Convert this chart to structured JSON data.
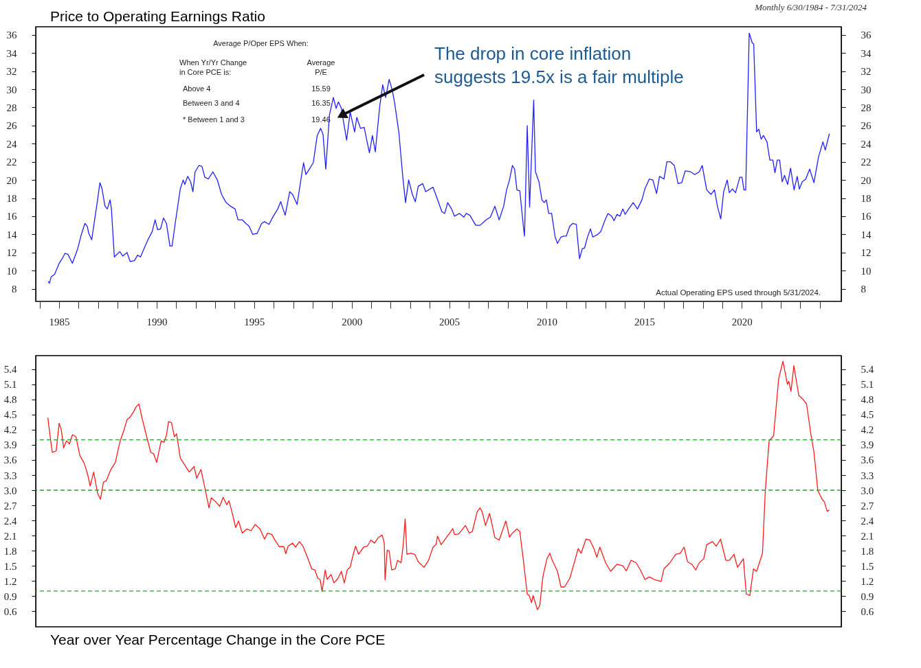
{
  "chart_data": [
    {
      "type": "line",
      "title": "Price to Operating Earnings Ratio",
      "subtitle": "Monthly 6/30/1984 - 7/31/2024",
      "annotations": [
        {
          "text": "The drop in core inflation suggests 19.5x is a fair multiple",
          "x": 1999.55,
          "y": 27.2
        },
        "Actual Operating EPS used through 5/31/2024.",
        "Average P/Oper EPS When:",
        "When Yr/Yr Change\nin Core PCE is:",
        "Average\nP/E",
        "Above 4",
        "15.59",
        "Between 3 and 4",
        "16.35",
        "* Between 1 and 3",
        "19.46"
      ],
      "xlim": [
        1983.8,
        2025.1
      ],
      "xticks": [
        {
          "value": 1984,
          "label": null
        },
        1985,
        {
          "value": 1986,
          "label": null
        },
        {
          "value": 1987,
          "label": null
        },
        {
          "value": 1988,
          "label": null
        },
        {
          "value": 1989,
          "label": null
        },
        1990,
        {
          "value": 1991,
          "label": null
        },
        {
          "value": 1992,
          "label": null
        },
        {
          "value": 1993,
          "label": null
        },
        {
          "value": 1994,
          "label": null
        },
        1995,
        {
          "value": 1996,
          "label": null
        },
        {
          "value": 1997,
          "label": null
        },
        {
          "value": 1998,
          "label": null
        },
        {
          "value": 1999,
          "label": null
        },
        2000,
        {
          "value": 2001,
          "label": null
        },
        {
          "value": 2002,
          "label": null
        },
        {
          "value": 2003,
          "label": null
        },
        {
          "value": 2004,
          "label": null
        },
        2005,
        {
          "value": 2006,
          "label": null
        },
        {
          "value": 2007,
          "label": null
        },
        {
          "value": 2008,
          "label": null
        },
        {
          "value": 2009,
          "label": null
        },
        2010,
        {
          "value": 2011,
          "label": null
        },
        {
          "value": 2012,
          "label": null
        },
        {
          "value": 2013,
          "label": null
        },
        {
          "value": 2014,
          "label": null
        },
        2015,
        {
          "value": 2016,
          "label": null
        },
        {
          "value": 2017,
          "label": null
        },
        {
          "value": 2018,
          "label": null
        },
        {
          "value": 2019,
          "label": null
        },
        2020,
        {
          "value": 2021,
          "label": null
        },
        {
          "value": 2022,
          "label": null
        },
        {
          "value": 2023,
          "label": null
        },
        {
          "value": 2024,
          "label": null
        }
      ],
      "ylim": [
        6.6,
        36.9
      ],
      "yticks": [
        8,
        10,
        12,
        14,
        16,
        18,
        20,
        22,
        24,
        26,
        28,
        30,
        32,
        34,
        36
      ],
      "y2lim": [
        6.6,
        36.9
      ],
      "y2ticks": [
        8,
        10,
        12,
        14,
        16,
        18,
        20,
        22,
        24,
        26,
        28,
        30,
        32,
        34,
        36
      ],
      "grid": false,
      "series": [
        {
          "color": "#1f1fff",
          "x": [
            1984.44,
            1984.5,
            1984.59,
            1984.77,
            1985.0,
            1985.15,
            1985.3,
            1985.45,
            1985.68,
            1985.95,
            1986.14,
            1986.32,
            1986.44,
            1986.52,
            1986.67,
            1986.82,
            1986.97,
            1987.09,
            1987.2,
            1987.35,
            1987.47,
            1987.61,
            1987.68,
            1987.83,
            1988.11,
            1988.26,
            1988.48,
            1988.64,
            1988.86,
            1989.02,
            1989.17,
            1989.39,
            1989.55,
            1989.77,
            1989.92,
            1990.05,
            1990.2,
            1990.35,
            1990.5,
            1990.68,
            1990.79,
            1990.95,
            1991.21,
            1991.36,
            1991.44,
            1991.59,
            1991.74,
            1991.86,
            1991.97,
            1992.17,
            1992.32,
            1992.47,
            1992.65,
            1992.88,
            1993.11,
            1993.33,
            1993.56,
            1993.79,
            1994.02,
            1994.17,
            1994.39,
            1994.62,
            1994.74,
            1994.92,
            1995.15,
            1995.38,
            1995.53,
            1995.76,
            1995.98,
            1996.21,
            1996.36,
            1996.59,
            1996.82,
            1996.97,
            1997.2,
            1997.53,
            1997.65,
            1997.8,
            1998.03,
            1998.23,
            1998.41,
            1998.53,
            1998.67,
            1998.86,
            1999.06,
            1999.2,
            1999.32,
            1999.47,
            1999.59,
            1999.74,
            1999.92,
            2000.15,
            2000.26,
            2000.45,
            2000.64,
            2000.76,
            2000.91,
            2001.06,
            2001.21,
            2001.44,
            2001.59,
            2001.74,
            2001.92,
            2002.08,
            2002.2,
            2002.42,
            2002.62,
            2002.76,
            2002.92,
            2003.11,
            2003.26,
            2003.41,
            2003.64,
            2003.79,
            2004.17,
            2004.39,
            2004.62,
            2004.77,
            2004.92,
            2005.12,
            2005.27,
            2005.53,
            2005.75,
            2005.87,
            2006.06,
            2006.36,
            2006.58,
            2006.89,
            2007.11,
            2007.34,
            2007.56,
            2007.79,
            2007.94,
            2008.09,
            2008.24,
            2008.35,
            2008.47,
            2008.62,
            2008.8,
            2008.86,
            2009.0,
            2009.12,
            2009.33,
            2009.42,
            2009.6,
            2009.75,
            2009.87,
            2009.98,
            2010.1,
            2010.25,
            2010.43,
            2010.55,
            2010.73,
            2010.88,
            2011.0,
            2011.18,
            2011.33,
            2011.52,
            2011.56,
            2011.68,
            2011.82,
            2011.94,
            2012.09,
            2012.24,
            2012.36,
            2012.62,
            2012.77,
            2012.99,
            2013.14,
            2013.33,
            2013.45,
            2013.6,
            2013.75,
            2013.9,
            2014.02,
            2014.2,
            2014.43,
            2014.65,
            2014.88,
            2015.03,
            2015.26,
            2015.44,
            2015.63,
            2015.78,
            2016.01,
            2016.16,
            2016.34,
            2016.54,
            2016.73,
            2016.92,
            2017.1,
            2017.37,
            2017.59,
            2017.82,
            2017.97,
            2018.2,
            2018.42,
            2018.6,
            2018.76,
            2018.92,
            2019.07,
            2019.25,
            2019.36,
            2019.51,
            2019.68,
            2019.9,
            2020.01,
            2020.11,
            2020.2,
            2020.38,
            2020.54,
            2020.61,
            2020.76,
            2020.87,
            2020.99,
            2021.11,
            2021.29,
            2021.44,
            2021.59,
            2021.7,
            2021.82,
            2021.94,
            2022.07,
            2022.19,
            2022.35,
            2022.5,
            2022.68,
            2022.84,
            2022.95,
            2023.1,
            2023.28,
            2023.48,
            2023.7,
            2023.93,
            2024.16,
            2024.28,
            2024.49
          ],
          "values": [
            8.8,
            8.6,
            9.3,
            9.6,
            10.8,
            11.3,
            11.9,
            11.8,
            10.8,
            12.4,
            14.0,
            15.2,
            14.9,
            14.1,
            13.4,
            15.6,
            17.8,
            19.7,
            19.0,
            17.1,
            16.8,
            17.8,
            16.8,
            11.5,
            12.1,
            11.6,
            12.0,
            11.0,
            11.1,
            11.7,
            11.5,
            12.6,
            13.4,
            14.3,
            15.6,
            14.5,
            14.6,
            15.8,
            15.2,
            12.7,
            12.7,
            15.2,
            19.0,
            20.0,
            19.5,
            20.4,
            19.8,
            18.7,
            20.9,
            21.6,
            21.5,
            20.3,
            20.1,
            20.9,
            20.0,
            18.4,
            17.5,
            17.1,
            16.8,
            15.6,
            15.6,
            15.1,
            14.9,
            14.0,
            14.1,
            15.2,
            15.4,
            15.1,
            16.0,
            16.8,
            17.6,
            16.1,
            18.7,
            18.4,
            17.3,
            21.9,
            20.6,
            21.1,
            21.9,
            24.9,
            25.7,
            25.0,
            21.2,
            27.2,
            29.1,
            27.9,
            28.6,
            27.9,
            26.3,
            24.4,
            27.5,
            25.3,
            26.9,
            25.7,
            25.8,
            24.5,
            23.0,
            24.9,
            23.1,
            28.2,
            30.5,
            29.1,
            31.1,
            29.9,
            28.5,
            25.2,
            20.3,
            17.5,
            20.0,
            18.4,
            17.6,
            19.3,
            19.6,
            18.7,
            19.2,
            17.9,
            16.5,
            16.3,
            17.5,
            16.8,
            16.0,
            16.3,
            15.9,
            16.3,
            16.1,
            15.0,
            15.0,
            15.6,
            15.9,
            17.1,
            15.6,
            17.1,
            18.9,
            20.0,
            21.6,
            21.2,
            18.9,
            18.8,
            14.9,
            13.8,
            26.0,
            17.0,
            28.8,
            20.9,
            19.8,
            17.8,
            17.5,
            17.8,
            16.3,
            16.3,
            13.7,
            13.0,
            13.7,
            13.8,
            13.8,
            14.9,
            15.2,
            15.1,
            14.0,
            11.3,
            12.4,
            12.5,
            13.7,
            14.6,
            13.7,
            14.0,
            14.3,
            15.6,
            16.3,
            16.0,
            15.5,
            16.2,
            16.0,
            16.8,
            16.2,
            16.8,
            17.5,
            16.8,
            17.8,
            19.0,
            20.1,
            20.0,
            18.5,
            20.4,
            20.1,
            22.0,
            22.0,
            21.6,
            19.6,
            19.7,
            21.0,
            20.9,
            20.6,
            20.9,
            21.6,
            18.9,
            18.4,
            18.9,
            17.0,
            15.7,
            18.7,
            20.0,
            18.6,
            19.0,
            18.6,
            20.3,
            20.3,
            18.9,
            18.9,
            36.2,
            35.1,
            35.0,
            25.3,
            25.6,
            24.5,
            24.9,
            24.2,
            22.2,
            22.2,
            20.8,
            22.2,
            22.2,
            19.8,
            20.5,
            19.5,
            21.3,
            18.9,
            20.4,
            19.0,
            19.8,
            20.1,
            21.2,
            19.7,
            22.5,
            24.2,
            23.3,
            25.1
          ]
        }
      ]
    },
    {
      "type": "line",
      "title": "Year over Year Percentage Change in the Core PCE",
      "xlim": [
        1983.8,
        2025.1
      ],
      "ylim": [
        0.29,
        5.67
      ],
      "yticks": [
        0.6,
        0.9,
        1.2,
        1.5,
        1.8,
        2.1,
        2.4,
        2.7,
        {
          "value": 3,
          "label": "3.0"
        },
        3.3,
        3.6,
        3.9,
        4.2,
        4.5,
        4.8,
        5.1,
        5.4
      ],
      "y2lim": [
        0.29,
        5.67
      ],
      "y2ticks": [
        0.6,
        0.9,
        1.2,
        1.5,
        1.8,
        2.1,
        2.4,
        2.7,
        {
          "value": 3,
          "label": "3.0"
        },
        3.3,
        3.6,
        3.9,
        4.2,
        4.5,
        4.8,
        5.1,
        5.4
      ],
      "tick_labels": "y",
      "grid": false,
      "ref_lines": [
        {
          "axis": "y",
          "value": 4,
          "color": "#2ca02c",
          "line_style": "dashed"
        },
        {
          "axis": "y",
          "value": 3,
          "color": "#2ca02c",
          "line_style": "dashed"
        },
        {
          "axis": "y",
          "value": 1,
          "color": "#2ca02c",
          "line_style": "dashed"
        }
      ],
      "series": [
        {
          "color": "#ff1a1a",
          "x": [
            1984.42,
            1984.55,
            1984.65,
            1984.85,
            1985.0,
            1985.11,
            1985.23,
            1985.38,
            1985.53,
            1985.68,
            1985.86,
            1986.06,
            1986.29,
            1986.47,
            1986.59,
            1986.77,
            1986.97,
            1987.12,
            1987.27,
            1987.42,
            1987.65,
            1987.88,
            1988.11,
            1988.33,
            1988.48,
            1988.64,
            1988.79,
            1988.94,
            1989.09,
            1989.24,
            1989.47,
            1989.7,
            1989.85,
            1990.0,
            1990.23,
            1990.38,
            1990.5,
            1990.61,
            1990.76,
            1990.91,
            1991.02,
            1991.21,
            1991.44,
            1991.67,
            1991.92,
            1992.05,
            1992.27,
            1992.47,
            1992.68,
            1992.8,
            1993.03,
            1993.23,
            1993.41,
            1993.59,
            1993.71,
            1993.86,
            1994.05,
            1994.2,
            1994.39,
            1994.62,
            1994.85,
            1995.05,
            1995.3,
            1995.53,
            1995.68,
            1995.91,
            1996.06,
            1996.29,
            1996.52,
            1996.62,
            1996.74,
            1996.97,
            1997.12,
            1997.32,
            1997.5,
            1997.73,
            1997.95,
            1998.11,
            1998.26,
            1998.38,
            1998.48,
            1998.64,
            1998.74,
            1998.94,
            1999.09,
            1999.29,
            1999.47,
            1999.62,
            1999.77,
            1999.92,
            2000.08,
            2000.2,
            2000.35,
            2000.61,
            2000.8,
            2000.98,
            2001.17,
            2001.36,
            2001.56,
            2001.67,
            2001.71,
            2001.82,
            2001.92,
            2002.05,
            2002.23,
            2002.35,
            2002.53,
            2002.65,
            2002.74,
            2002.83,
            2003.03,
            2003.23,
            2003.41,
            2003.71,
            2003.94,
            2004.17,
            2004.32,
            2004.4,
            2004.58,
            2004.85,
            2005.08,
            2005.18,
            2005.27,
            2005.48,
            2005.83,
            2006.03,
            2006.18,
            2006.43,
            2006.58,
            2006.69,
            2006.86,
            2007.07,
            2007.34,
            2007.56,
            2007.9,
            2008.09,
            2008.24,
            2008.47,
            2008.62,
            2008.8,
            2009.0,
            2009.1,
            2009.22,
            2009.3,
            2009.52,
            2009.64,
            2009.8,
            2010.01,
            2010.16,
            2010.28,
            2010.55,
            2010.73,
            2010.91,
            2011.18,
            2011.41,
            2011.61,
            2011.76,
            2012.01,
            2012.21,
            2012.42,
            2012.57,
            2012.72,
            2013.02,
            2013.27,
            2013.6,
            2013.9,
            2014.08,
            2014.32,
            2014.58,
            2014.8,
            2015.03,
            2015.26,
            2015.56,
            2015.86,
            2016.01,
            2016.31,
            2016.61,
            2016.84,
            2017.04,
            2017.22,
            2017.44,
            2017.64,
            2017.82,
            2018.05,
            2018.2,
            2018.5,
            2018.69,
            2018.91,
            2019.18,
            2019.36,
            2019.6,
            2019.78,
            2020.08,
            2020.23,
            2020.41,
            2020.6,
            2020.76,
            2021.06,
            2021.21,
            2021.4,
            2021.63,
            2021.89,
            2022.11,
            2022.34,
            2022.41,
            2022.52,
            2022.67,
            2022.92,
            2023.1,
            2023.32,
            2023.55,
            2023.7,
            2023.9,
            2024.12,
            2024.23,
            2024.38,
            2024.49
          ],
          "values": [
            4.44,
            4.03,
            3.75,
            3.78,
            4.33,
            4.2,
            3.84,
            3.98,
            3.92,
            4.1,
            4.06,
            3.69,
            3.53,
            3.3,
            3.08,
            3.36,
            2.94,
            2.82,
            3.16,
            3.19,
            3.41,
            3.55,
            3.95,
            4.2,
            4.4,
            4.45,
            4.54,
            4.65,
            4.71,
            4.45,
            4.09,
            3.75,
            3.72,
            3.55,
            3.98,
            3.95,
            4.09,
            4.36,
            4.34,
            4.06,
            4.12,
            3.64,
            3.5,
            3.36,
            3.47,
            3.24,
            3.41,
            3.05,
            2.65,
            2.85,
            2.77,
            2.68,
            2.86,
            2.71,
            2.79,
            2.57,
            2.26,
            2.39,
            2.15,
            2.23,
            2.2,
            2.32,
            2.23,
            2.03,
            2.15,
            2.12,
            2.01,
            1.88,
            1.88,
            1.74,
            1.89,
            1.95,
            1.87,
            1.98,
            1.89,
            1.67,
            1.44,
            1.42,
            1.25,
            1.23,
            0.99,
            1.42,
            1.23,
            1.33,
            1.16,
            1.25,
            1.39,
            1.16,
            1.42,
            1.47,
            1.73,
            1.89,
            1.73,
            1.87,
            1.89,
            2.01,
            1.95,
            2.06,
            2.11,
            1.95,
            1.22,
            1.81,
            1.79,
            1.42,
            1.44,
            1.61,
            1.56,
            1.95,
            2.43,
            1.73,
            1.75,
            1.73,
            1.58,
            1.47,
            1.61,
            1.87,
            1.92,
            2.09,
            1.92,
            2.06,
            2.18,
            2.24,
            2.12,
            2.13,
            2.3,
            2.15,
            2.18,
            2.57,
            2.65,
            2.57,
            2.3,
            2.54,
            2.06,
            2.01,
            2.39,
            2.07,
            2.15,
            2.23,
            2.18,
            1.61,
            0.94,
            0.91,
            0.77,
            0.91,
            0.63,
            0.71,
            1.28,
            1.64,
            1.75,
            1.61,
            1.39,
            1.08,
            1.08,
            1.25,
            1.56,
            1.84,
            1.75,
            2.03,
            2.01,
            1.84,
            1.67,
            1.87,
            1.56,
            1.39,
            1.53,
            1.5,
            1.4,
            1.61,
            1.56,
            1.42,
            1.23,
            1.28,
            1.22,
            1.19,
            1.44,
            1.56,
            1.73,
            1.75,
            1.87,
            1.58,
            1.53,
            1.42,
            1.56,
            1.64,
            1.92,
            1.98,
            1.89,
            2.03,
            1.61,
            1.61,
            1.73,
            1.47,
            1.64,
            0.94,
            0.91,
            1.44,
            1.39,
            1.75,
            3.02,
            3.98,
            4.08,
            5.21,
            5.56,
            5.1,
            5.16,
            4.96,
            5.47,
            4.88,
            4.82,
            4.71,
            4.09,
            3.75,
            2.99,
            2.82,
            2.77,
            2.58,
            2.61
          ]
        }
      ]
    }
  ]
}
